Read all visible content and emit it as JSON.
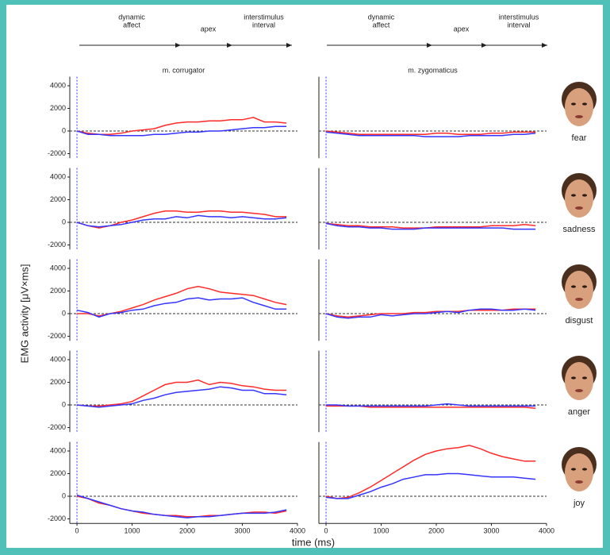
{
  "header": {
    "phases": [
      [
        "dynamic",
        "affect"
      ],
      [
        "apex"
      ],
      [
        "interstimulus",
        "interval"
      ]
    ]
  },
  "y_label": "EMG activity [μV×ms]",
  "x_label": "time (ms)",
  "emotions": [
    "fear",
    "sadness",
    "disgust",
    "anger",
    "joy"
  ],
  "chart_data": [
    {
      "type": "line",
      "title": "m. corrugator",
      "x": [
        0,
        200,
        400,
        600,
        800,
        1000,
        1200,
        1400,
        1600,
        1800,
        2000,
        2200,
        2400,
        2600,
        2800,
        3000,
        3200,
        3400,
        3600,
        3800
      ],
      "xlim": [
        -130,
        4000
      ],
      "ylim": [
        -2400,
        4800
      ],
      "yticks": [
        -2000,
        0,
        2000,
        4000
      ],
      "reference_line": 0,
      "onset_line": 0,
      "series": [
        {
          "color": "#ff2a2a",
          "values": [
            0,
            -200,
            -300,
            -300,
            -200,
            0,
            100,
            200,
            500,
            700,
            800,
            800,
            900,
            900,
            1000,
            1000,
            1200,
            800,
            800,
            700
          ]
        },
        {
          "color": "#3535ff",
          "values": [
            0,
            -300,
            -300,
            -400,
            -400,
            -400,
            -400,
            -300,
            -300,
            -200,
            -100,
            -100,
            0,
            0,
            100,
            200,
            300,
            300,
            400,
            400
          ]
        }
      ]
    },
    {
      "type": "line",
      "title": "m. zygomaticus",
      "x": [
        0,
        200,
        400,
        600,
        800,
        1000,
        1200,
        1400,
        1600,
        1800,
        2000,
        2200,
        2400,
        2600,
        2800,
        3000,
        3200,
        3400,
        3600,
        3800
      ],
      "xlim": [
        -130,
        4000
      ],
      "ylim": [
        -2400,
        4800
      ],
      "reference_line": 0,
      "onset_line": 0,
      "series": [
        {
          "color": "#ff2a2a",
          "values": [
            0,
            -100,
            -200,
            -300,
            -300,
            -300,
            -300,
            -300,
            -300,
            -300,
            -200,
            -200,
            -300,
            -300,
            -300,
            -200,
            -200,
            -100,
            -100,
            -100
          ]
        },
        {
          "color": "#3535ff",
          "values": [
            -100,
            -200,
            -300,
            -400,
            -400,
            -400,
            -400,
            -400,
            -400,
            -500,
            -500,
            -500,
            -500,
            -400,
            -400,
            -400,
            -400,
            -300,
            -300,
            -200
          ]
        }
      ]
    },
    {
      "type": "line",
      "x": [
        0,
        200,
        400,
        600,
        800,
        1000,
        1200,
        1400,
        1600,
        1800,
        2000,
        2200,
        2400,
        2600,
        2800,
        3000,
        3200,
        3400,
        3600,
        3800
      ],
      "xlim": [
        -130,
        4000
      ],
      "ylim": [
        -2400,
        4800
      ],
      "yticks": [
        -2000,
        0,
        2000,
        4000
      ],
      "reference_line": 0,
      "onset_line": 0,
      "series": [
        {
          "color": "#ff2a2a",
          "values": [
            0,
            -300,
            -500,
            -300,
            0,
            200,
            500,
            800,
            1000,
            1000,
            900,
            900,
            1000,
            1000,
            900,
            900,
            800,
            700,
            500,
            500
          ]
        },
        {
          "color": "#3535ff",
          "values": [
            0,
            -300,
            -400,
            -300,
            -200,
            0,
            200,
            300,
            300,
            500,
            400,
            600,
            500,
            500,
            400,
            500,
            400,
            300,
            300,
            400
          ]
        }
      ]
    },
    {
      "type": "line",
      "x": [
        0,
        200,
        400,
        600,
        800,
        1000,
        1200,
        1400,
        1600,
        1800,
        2000,
        2200,
        2400,
        2600,
        2800,
        3000,
        3200,
        3400,
        3600,
        3800
      ],
      "xlim": [
        -130,
        4000
      ],
      "ylim": [
        -2400,
        4800
      ],
      "reference_line": 0,
      "onset_line": 0,
      "series": [
        {
          "color": "#ff2a2a",
          "values": [
            -100,
            -200,
            -300,
            -300,
            -400,
            -400,
            -400,
            -500,
            -500,
            -500,
            -400,
            -400,
            -400,
            -400,
            -400,
            -300,
            -300,
            -300,
            -200,
            -300
          ]
        },
        {
          "color": "#3535ff",
          "values": [
            -100,
            -300,
            -400,
            -400,
            -500,
            -500,
            -600,
            -600,
            -600,
            -500,
            -500,
            -500,
            -500,
            -500,
            -500,
            -500,
            -500,
            -600,
            -600,
            -600
          ]
        }
      ]
    },
    {
      "type": "line",
      "x": [
        0,
        200,
        400,
        600,
        800,
        1000,
        1200,
        1400,
        1600,
        1800,
        2000,
        2200,
        2400,
        2600,
        2800,
        3000,
        3200,
        3400,
        3600,
        3800
      ],
      "xlim": [
        -130,
        4000
      ],
      "ylim": [
        -2400,
        4800
      ],
      "yticks": [
        -2000,
        0,
        2000,
        4000
      ],
      "reference_line": 0,
      "onset_line": 0,
      "series": [
        {
          "color": "#ff2a2a",
          "values": [
            0,
            0,
            -200,
            0,
            200,
            500,
            800,
            1200,
            1500,
            1800,
            2200,
            2400,
            2200,
            1900,
            1800,
            1700,
            1600,
            1300,
            1000,
            800
          ]
        },
        {
          "color": "#3535ff",
          "values": [
            300,
            100,
            -300,
            0,
            100,
            300,
            400,
            700,
            900,
            1000,
            1300,
            1400,
            1200,
            1300,
            1300,
            1400,
            1000,
            700,
            400,
            400
          ]
        }
      ]
    },
    {
      "type": "line",
      "x": [
        0,
        200,
        400,
        600,
        800,
        1000,
        1200,
        1400,
        1600,
        1800,
        2000,
        2200,
        2400,
        2600,
        2800,
        3000,
        3200,
        3400,
        3600,
        3800
      ],
      "xlim": [
        -130,
        4000
      ],
      "ylim": [
        -2400,
        4800
      ],
      "reference_line": 0,
      "onset_line": 0,
      "series": [
        {
          "color": "#ff2a2a",
          "values": [
            0,
            -200,
            -300,
            -200,
            -100,
            0,
            0,
            0,
            100,
            100,
            200,
            200,
            200,
            300,
            300,
            300,
            300,
            400,
            400,
            400
          ]
        },
        {
          "color": "#3535ff",
          "values": [
            0,
            -300,
            -400,
            -300,
            -300,
            -100,
            -200,
            -100,
            0,
            0,
            100,
            200,
            100,
            300,
            400,
            400,
            300,
            300,
            400,
            300
          ]
        }
      ]
    },
    {
      "type": "line",
      "x": [
        0,
        200,
        400,
        600,
        800,
        1000,
        1200,
        1400,
        1600,
        1800,
        2000,
        2200,
        2400,
        2600,
        2800,
        3000,
        3200,
        3400,
        3600,
        3800
      ],
      "xlim": [
        -130,
        4000
      ],
      "ylim": [
        -2400,
        4800
      ],
      "yticks": [
        -2000,
        0,
        2000,
        4000
      ],
      "reference_line": 0,
      "onset_line": 0,
      "series": [
        {
          "color": "#ff2a2a",
          "values": [
            0,
            -100,
            -100,
            0,
            100,
            300,
            800,
            1300,
            1800,
            2000,
            2000,
            2200,
            1800,
            2000,
            1900,
            1700,
            1600,
            1400,
            1300,
            1300
          ]
        },
        {
          "color": "#3535ff",
          "values": [
            0,
            -100,
            -200,
            -100,
            0,
            100,
            400,
            600,
            900,
            1100,
            1200,
            1300,
            1400,
            1600,
            1500,
            1300,
            1300,
            1000,
            1000,
            900
          ]
        }
      ]
    },
    {
      "type": "line",
      "x": [
        0,
        200,
        400,
        600,
        800,
        1000,
        1200,
        1400,
        1600,
        1800,
        2000,
        2200,
        2400,
        2600,
        2800,
        3000,
        3200,
        3400,
        3600,
        3800
      ],
      "xlim": [
        -130,
        4000
      ],
      "ylim": [
        -2400,
        4800
      ],
      "reference_line": 0,
      "onset_line": 0,
      "series": [
        {
          "color": "#ff2a2a",
          "values": [
            -100,
            -100,
            -100,
            -100,
            -200,
            -200,
            -200,
            -200,
            -200,
            -200,
            -200,
            -200,
            -200,
            -200,
            -200,
            -200,
            -200,
            -200,
            -200,
            -300
          ]
        },
        {
          "color": "#3535ff",
          "values": [
            0,
            0,
            -100,
            -100,
            -100,
            -100,
            -100,
            -100,
            -100,
            -100,
            0,
            100,
            0,
            -100,
            -100,
            -100,
            -100,
            -100,
            -100,
            -100
          ]
        }
      ]
    },
    {
      "type": "line",
      "x": [
        0,
        200,
        400,
        600,
        800,
        1000,
        1200,
        1400,
        1600,
        1800,
        2000,
        2200,
        2400,
        2600,
        2800,
        3000,
        3200,
        3400,
        3600,
        3800
      ],
      "xlim": [
        -130,
        4000
      ],
      "ylim": [
        -2400,
        4800
      ],
      "xticks": [
        0,
        1000,
        2000,
        3000,
        4000
      ],
      "yticks": [
        -2000,
        0,
        2000,
        4000
      ],
      "reference_line": 0,
      "onset_line": 0,
      "series": [
        {
          "color": "#ff2a2a",
          "values": [
            0,
            -200,
            -600,
            -800,
            -1100,
            -1300,
            -1500,
            -1600,
            -1700,
            -1700,
            -1800,
            -1800,
            -1700,
            -1700,
            -1600,
            -1500,
            -1400,
            -1400,
            -1500,
            -1300
          ]
        },
        {
          "color": "#3535ff",
          "values": [
            100,
            -200,
            -500,
            -800,
            -1100,
            -1300,
            -1400,
            -1600,
            -1700,
            -1800,
            -1900,
            -1800,
            -1800,
            -1700,
            -1600,
            -1500,
            -1500,
            -1500,
            -1400,
            -1200
          ]
        }
      ]
    },
    {
      "type": "line",
      "x": [
        0,
        200,
        400,
        600,
        800,
        1000,
        1200,
        1400,
        1600,
        1800,
        2000,
        2200,
        2400,
        2600,
        2800,
        3000,
        3200,
        3400,
        3600,
        3800
      ],
      "xlim": [
        -130,
        4000
      ],
      "ylim": [
        -2400,
        4800
      ],
      "xticks": [
        0,
        1000,
        2000,
        3000,
        4000
      ],
      "reference_line": 0,
      "onset_line": 0,
      "series": [
        {
          "color": "#ff2a2a",
          "values": [
            0,
            -200,
            -100,
            300,
            800,
            1400,
            2000,
            2600,
            3200,
            3700,
            4000,
            4200,
            4300,
            4500,
            4200,
            3800,
            3500,
            3300,
            3100,
            3100
          ]
        },
        {
          "color": "#3535ff",
          "values": [
            -100,
            -200,
            -200,
            100,
            400,
            800,
            1100,
            1500,
            1700,
            1900,
            1900,
            2000,
            2000,
            1900,
            1800,
            1700,
            1700,
            1700,
            1600,
            1500
          ]
        }
      ]
    }
  ]
}
